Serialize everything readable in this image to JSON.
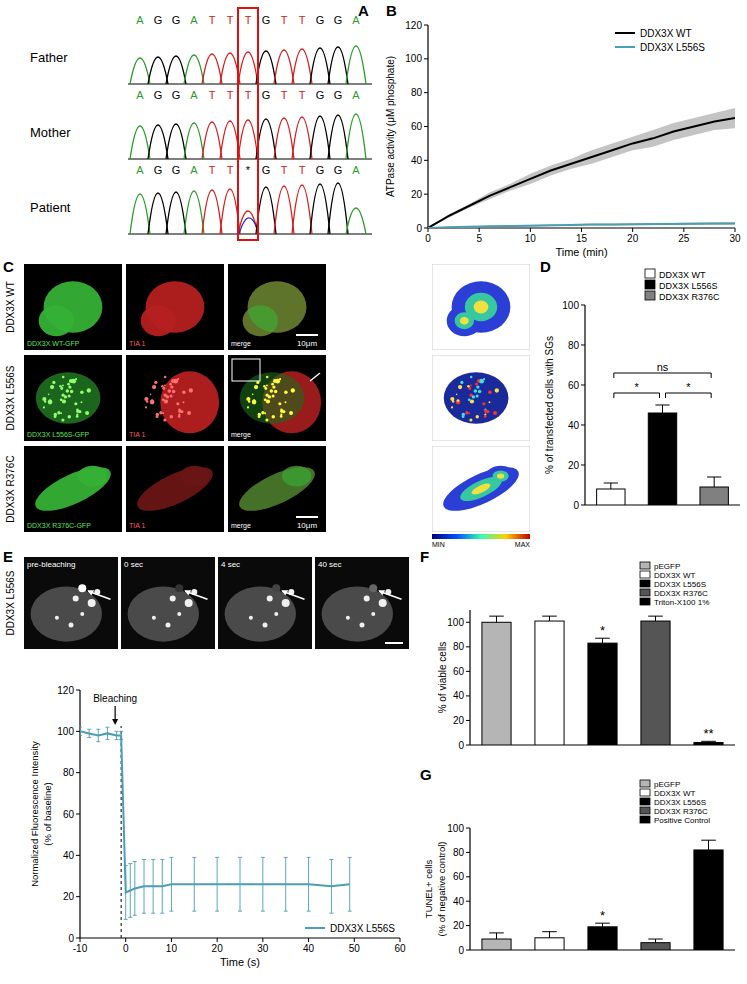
{
  "figures": {
    "A": {
      "panel": "A",
      "rows": [
        {
          "label": "Father",
          "bases": [
            "A",
            "G",
            "G",
            "A",
            "T",
            "T",
            "T",
            "G",
            "T",
            "T",
            "G",
            "G",
            "A"
          ]
        },
        {
          "label": "Mother",
          "bases": [
            "A",
            "G",
            "G",
            "A",
            "T",
            "T",
            "T",
            "G",
            "T",
            "T",
            "G",
            "G",
            "A"
          ]
        },
        {
          "label": "Patient",
          "bases": [
            "A",
            "G",
            "G",
            "A",
            "T",
            "T",
            "*",
            "G",
            "T",
            "T",
            "G",
            "G",
            "A"
          ]
        }
      ]
    },
    "C": {
      "panel": "C",
      "rows": [
        {
          "label": "DDX3X WT",
          "channels": [
            "DDX3X WT-GFP",
            "TIA 1",
            "merge"
          ]
        },
        {
          "label": "DDX3X L556S",
          "channels": [
            "DDX3X L556S-GFP",
            "TIA 1",
            "merge"
          ]
        },
        {
          "label": "DDX3X R376C",
          "channels": [
            "DDX3X R376C-GFP",
            "TIA 1",
            "merge"
          ]
        }
      ],
      "scale_bar": "10μm",
      "colorbar": [
        "MIN",
        "MAX"
      ]
    },
    "E": {
      "panel": "E",
      "label": "DDX3X L556S",
      "frames": [
        "pre-bleaching",
        "0 sec",
        "4 sec",
        "40 sec"
      ]
    }
  },
  "chart_data": [
    {
      "panel": "B",
      "type": "line",
      "xlabel": "Time (min)",
      "ylabel": [
        "ATPase activity (μM phosphate)"
      ],
      "xlim": [
        0,
        30
      ],
      "xticks": [
        0,
        5,
        10,
        15,
        20,
        25,
        30
      ],
      "ylim": [
        0,
        120
      ],
      "yticks": [
        0,
        20,
        40,
        60,
        80,
        100,
        120
      ],
      "legend": "top-right",
      "x": [
        0,
        2,
        4,
        6,
        8,
        10,
        12,
        14,
        16,
        18,
        20,
        22,
        24,
        26,
        28,
        30
      ],
      "series": [
        {
          "name": "DDX3X WT",
          "color": "#000000",
          "values": [
            0,
            7,
            13,
            19,
            24,
            29,
            34,
            38,
            42,
            46,
            50,
            53,
            57,
            60,
            63,
            65
          ],
          "band": [
            0,
            1,
            1,
            2,
            2,
            3,
            3,
            3,
            4,
            4,
            4,
            5,
            5,
            5,
            5,
            6
          ]
        },
        {
          "name": "DDX3X L556S",
          "color": "#4a9fb5",
          "values": [
            0,
            0.5,
            0.8,
            1,
            1.2,
            1.4,
            1.6,
            1.8,
            2,
            2,
            2.2,
            2.3,
            2.4,
            2.5,
            2.6,
            2.7
          ],
          "band": [
            0,
            0.3,
            0.3,
            0.4,
            0.4,
            0.5,
            0.5,
            0.5,
            0.6,
            0.6,
            0.6,
            0.7,
            0.7,
            0.7,
            0.8,
            0.8
          ]
        }
      ]
    },
    {
      "panel": "D",
      "type": "bar",
      "ylabel": [
        "% of transfected cells with SGs"
      ],
      "categories": [
        "DDX3X WT",
        "DDX3X L556S",
        "DDX3X R376C"
      ],
      "values": [
        8,
        46,
        9
      ],
      "errors": [
        3,
        4,
        5
      ],
      "colors": [
        "#ffffff",
        "#000000",
        "#808080"
      ],
      "ylim": [
        0,
        100
      ],
      "yticks": [
        0,
        20,
        40,
        60,
        80,
        100
      ],
      "tick_labels": "y",
      "legend": "top-right",
      "annotations": [
        {
          "text": "ns",
          "from": 0,
          "to": 2,
          "y": 66
        },
        {
          "text": "*",
          "from": 0,
          "to": 1,
          "y": 56
        },
        {
          "text": "*",
          "from": 1,
          "to": 2,
          "y": 56
        }
      ]
    },
    {
      "type": "line",
      "xlabel": "Time (s)",
      "ylabel": [
        "Normalized Fluorescence Intensity",
        "(% of baseline)"
      ],
      "xlim": [
        -10,
        60
      ],
      "xticks": [
        -10,
        0,
        10,
        20,
        30,
        40,
        50,
        60
      ],
      "ylim": [
        0,
        120
      ],
      "yticks": [
        0,
        20,
        40,
        60,
        80,
        100,
        120
      ],
      "legend": "bottom-right",
      "annotations": [
        {
          "text": "Bleaching",
          "x": -1
        }
      ],
      "x": [
        -10,
        -8,
        -6,
        -4,
        -2,
        -1,
        0,
        1,
        2,
        4,
        6,
        8,
        10,
        15,
        20,
        25,
        30,
        35,
        40,
        45,
        49
      ],
      "series": [
        {
          "name": "DDX3X L556S",
          "color": "#4a9fb5",
          "values": [
            100,
            99,
            98,
            99,
            98,
            98,
            22,
            23,
            24,
            25,
            25,
            25,
            26,
            26,
            26,
            26,
            26,
            26,
            26,
            25,
            26
          ],
          "errors": [
            2,
            2,
            3,
            3,
            2,
            2,
            13,
            13,
            13,
            13,
            13,
            13,
            13,
            13,
            13,
            13,
            13,
            13,
            13,
            13,
            13
          ]
        }
      ]
    },
    {
      "panel": "F",
      "type": "bar",
      "ylabel": [
        "% of viable cells"
      ],
      "categories": [
        "pEGFP",
        "DDX3X WT",
        "DDX3X L556S",
        "DDX3X R376C",
        "Triton-X100 1%"
      ],
      "values": [
        100,
        101,
        83,
        101,
        2
      ],
      "errors": [
        5,
        4,
        4,
        4,
        1
      ],
      "colors": [
        "#b5b5b5",
        "#ffffff",
        "#000000",
        "#555555",
        "#000000"
      ],
      "ylim": [
        0,
        110
      ],
      "yticks": [
        0,
        20,
        40,
        60,
        80,
        100
      ],
      "tick_labels": "y",
      "legend": "top-right",
      "annotations": [
        {
          "text": "*",
          "at": 2,
          "y": 90
        },
        {
          "text": "**",
          "at": 4,
          "y": 6
        }
      ]
    },
    {
      "panel": "G",
      "type": "bar",
      "ylabel": [
        "TUNEL+ cells",
        "(% of negative control)"
      ],
      "categories": [
        "pEGFP",
        "DDX3X WT",
        "DDX3X L556S",
        "DDX3X R376C",
        "Positive Control"
      ],
      "values": [
        9,
        10,
        19,
        6,
        82
      ],
      "errors": [
        5,
        5,
        3,
        3,
        8
      ],
      "colors": [
        "#b5b5b5",
        "#ffffff",
        "#000000",
        "#555555",
        "#000000"
      ],
      "ylim": [
        0,
        100
      ],
      "yticks": [
        0,
        20,
        40,
        60,
        80,
        100
      ],
      "tick_labels": "y",
      "legend": "top-right",
      "annotations": [
        {
          "text": "*",
          "at": 2,
          "y": 25
        }
      ]
    }
  ]
}
